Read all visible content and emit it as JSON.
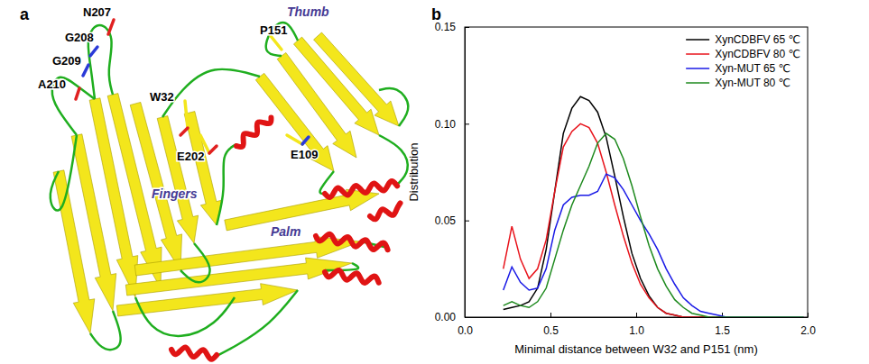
{
  "panel_letters": [
    "a",
    "b"
  ],
  "structure": {
    "residues": [
      "N207",
      "G208",
      "G209",
      "A210",
      "W32",
      "P151",
      "E109",
      "E202"
    ],
    "domains": [
      "Thumb",
      "Fingers",
      "Palm"
    ]
  },
  "chart_data": {
    "type": "line",
    "x_label": "Minimal distance between W32 and P151 (nm)",
    "y_label": "Distribution",
    "x": [
      0.225,
      0.275,
      0.325,
      0.375,
      0.425,
      0.475,
      0.525,
      0.575,
      0.625,
      0.675,
      0.725,
      0.775,
      0.825,
      0.875,
      0.925,
      0.975,
      1.025,
      1.075,
      1.125,
      1.175,
      1.225,
      1.275,
      1.325,
      1.375,
      1.425,
      1.475,
      1.525,
      1.575,
      1.625,
      1.675,
      1.725,
      1.775,
      1.825,
      1.875,
      1.925,
      1.975
    ],
    "series": [
      {
        "name": "XynCDBFV 65 ℃",
        "color": "#000000",
        "values": [
          0.004,
          0.005,
          0.006,
          0.008,
          0.015,
          0.035,
          0.065,
          0.095,
          0.108,
          0.114,
          0.112,
          0.106,
          0.093,
          0.073,
          0.052,
          0.033,
          0.02,
          0.011,
          0.005,
          0.002,
          0.001,
          0,
          0,
          0,
          0,
          0,
          0,
          0,
          0,
          0,
          0,
          0,
          0,
          0,
          0,
          0
        ]
      },
      {
        "name": "XynCDBFV 80 ℃",
        "color": "#e8141c",
        "values": [
          0.025,
          0.047,
          0.03,
          0.02,
          0.025,
          0.04,
          0.065,
          0.088,
          0.096,
          0.1,
          0.098,
          0.09,
          0.075,
          0.058,
          0.042,
          0.028,
          0.017,
          0.01,
          0.005,
          0.002,
          0.001,
          0,
          0,
          0,
          0,
          0,
          0,
          0,
          0,
          0,
          0,
          0,
          0,
          0,
          0,
          0
        ]
      },
      {
        "name": "Xyn-MUT 65 ℃",
        "color": "#1a1ae6",
        "values": [
          0.014,
          0.026,
          0.018,
          0.014,
          0.015,
          0.025,
          0.045,
          0.058,
          0.062,
          0.063,
          0.063,
          0.065,
          0.074,
          0.072,
          0.066,
          0.058,
          0.05,
          0.043,
          0.035,
          0.025,
          0.017,
          0.01,
          0.006,
          0.003,
          0.002,
          0.001,
          0,
          0,
          0,
          0,
          0,
          0,
          0,
          0,
          0,
          0
        ]
      },
      {
        "name": "Xyn-MUT 80 ℃",
        "color": "#1e8a1e",
        "values": [
          0.006,
          0.008,
          0.006,
          0.005,
          0.008,
          0.015,
          0.03,
          0.045,
          0.058,
          0.068,
          0.078,
          0.09,
          0.095,
          0.092,
          0.082,
          0.068,
          0.052,
          0.037,
          0.025,
          0.016,
          0.009,
          0.005,
          0.002,
          0.001,
          0,
          0,
          0,
          0,
          0,
          0,
          0,
          0,
          0,
          0,
          0,
          0
        ]
      }
    ],
    "xlim": [
      0,
      2
    ],
    "xticks": [
      {
        "value": 0,
        "label": "0.0"
      },
      0.5,
      {
        "value": 1,
        "label": "1.0"
      },
      1.5,
      {
        "value": 2,
        "label": "2.0"
      }
    ],
    "ylim": [
      0,
      0.15
    ],
    "yticks": [
      {
        "value": 0,
        "label": "0.00"
      },
      0.05,
      {
        "value": 0.1,
        "label": "0.10"
      },
      0.15
    ],
    "legend": "upper right",
    "grid": false
  }
}
